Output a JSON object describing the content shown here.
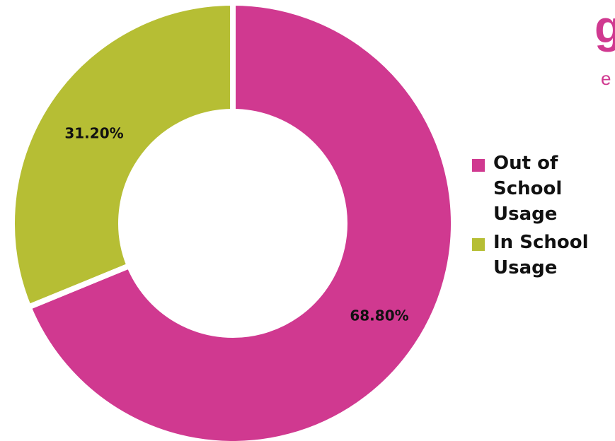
{
  "chart_data": {
    "type": "pie",
    "donut": true,
    "title": "",
    "slices": [
      {
        "label": "Out of School Usage",
        "value": 68.8,
        "display": "68.80%",
        "color": "#D03990"
      },
      {
        "label": "In School Usage",
        "value": 31.2,
        "display": "31.20%",
        "color": "#B6BE34"
      }
    ],
    "start": "12 o'clock",
    "direction": "clockwise",
    "legend": {
      "position": "right",
      "items": [
        "Out of School Usage",
        "In School Usage"
      ]
    }
  },
  "logo": {
    "glyph": "g",
    "subtext": "e",
    "color": "#D03990"
  }
}
